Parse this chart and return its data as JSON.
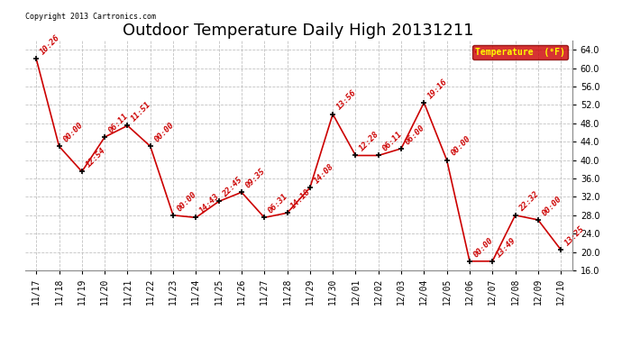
{
  "title": "Outdoor Temperature Daily High 20131211",
  "copyright_text": "Copyright 2013 Cartronics.com",
  "legend_label": "Temperature  (°F)",
  "x_labels": [
    "11/17",
    "11/18",
    "11/19",
    "11/20",
    "11/21",
    "11/22",
    "11/23",
    "11/24",
    "11/25",
    "11/26",
    "11/27",
    "11/28",
    "11/29",
    "11/30",
    "12/01",
    "12/02",
    "12/03",
    "12/04",
    "12/05",
    "12/06",
    "12/07",
    "12/08",
    "12/09",
    "12/10"
  ],
  "y_values": [
    62.0,
    43.0,
    37.5,
    45.0,
    47.5,
    43.0,
    28.0,
    27.5,
    31.0,
    33.0,
    27.5,
    28.5,
    34.0,
    50.0,
    41.0,
    41.0,
    42.5,
    52.5,
    40.0,
    18.0,
    18.0,
    28.0,
    27.0,
    20.5
  ],
  "point_labels": [
    "10:26",
    "00:00",
    "12:54",
    "06:11",
    "11:51",
    "00:00",
    "00:00",
    "14:43",
    "22:45",
    "09:35",
    "06:31",
    "14:18",
    "14:08",
    "13:56",
    "12:28",
    "06:11",
    "06:00",
    "19:16",
    "00:00",
    "00:00",
    "13:49",
    "22:32",
    "00:00",
    "13:25"
  ],
  "line_color": "#cc0000",
  "marker_color": "#000000",
  "background_color": "#ffffff",
  "grid_color": "#bbbbbb",
  "ylim": [
    16.0,
    66.0
  ],
  "yticks": [
    16.0,
    20.0,
    24.0,
    28.0,
    32.0,
    36.0,
    40.0,
    44.0,
    48.0,
    52.0,
    56.0,
    60.0,
    64.0
  ],
  "title_fontsize": 13,
  "label_fontsize": 7,
  "annotation_fontsize": 6.5,
  "legend_bg": "#cc0000",
  "legend_text_color": "#ffff00"
}
